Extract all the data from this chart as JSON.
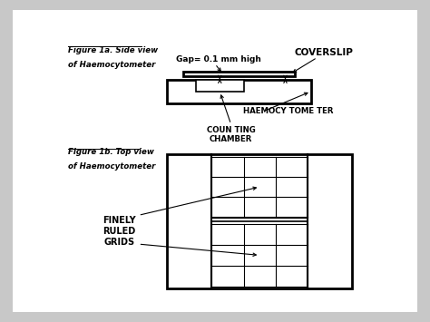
{
  "bg_color": "#c8c8c8",
  "panel_color": "#ffffff",
  "line_color": "#000000",
  "fig1a_label_line1": "Figure 1a. Side view",
  "fig1a_label_line2": "of Haemocytometer",
  "fig1b_label_line1": "Figure 1b. Top view",
  "fig1b_label_line2": "of Haemocytometer",
  "gap_label": "Gap= 0.1 mm high",
  "coverslip_label": "COVERSLIP",
  "counting_chamber_label": "COUN TING\nCHAMBER",
  "haemocytometer_label": "HAEMOCY TOME TER",
  "finely_ruled_label": "FINELY\nRULED\nGRIDS"
}
